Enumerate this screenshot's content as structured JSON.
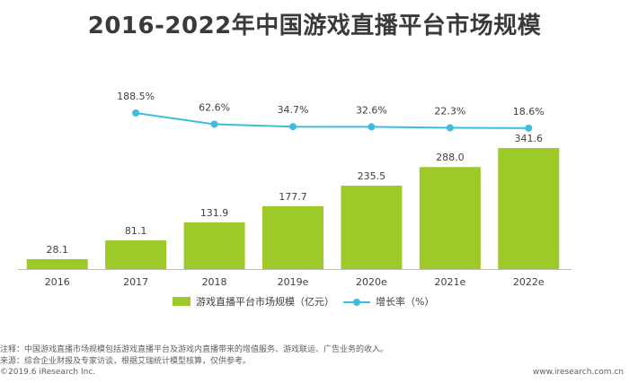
{
  "chart_data": {
    "type": "bar",
    "title": "2016-2022年中国游戏直播平台市场规模",
    "categories": [
      "2016",
      "2017",
      "2018",
      "2019e",
      "2020e",
      "2021e",
      "2022e"
    ],
    "series": [
      {
        "name": "游戏直播平台市场规模（亿元）",
        "kind": "bar",
        "color": "#9dc929",
        "values": [
          28.1,
          81.1,
          131.9,
          177.7,
          235.5,
          288.0,
          341.6
        ],
        "labels": [
          "28.1",
          "81.1",
          "131.9",
          "177.7",
          "235.5",
          "288.0",
          "341.6"
        ]
      },
      {
        "name": "增长率（%）",
        "kind": "line",
        "color": "#3cbde0",
        "values": [
          null,
          188.5,
          62.6,
          34.7,
          32.6,
          22.3,
          18.6
        ],
        "labels": [
          "",
          "188.5%",
          "62.6%",
          "34.7%",
          "32.6%",
          "22.3%",
          "18.6%"
        ]
      }
    ],
    "ylim": [
      0,
      380
    ],
    "legend_position": "bottom"
  },
  "notes": {
    "note": "注释：中国游戏直播市场规模包括游戏直播平台及游戏内直播带来的增值服务、游戏联运、广告业务的收入。",
    "source": "来源：综合企业财报及专家访谈，根据艾瑞统计模型核算，仅供参考。"
  },
  "footer": {
    "copyright": "©2019.6 iResearch Inc.",
    "website": "www.iresearch.com.cn"
  }
}
